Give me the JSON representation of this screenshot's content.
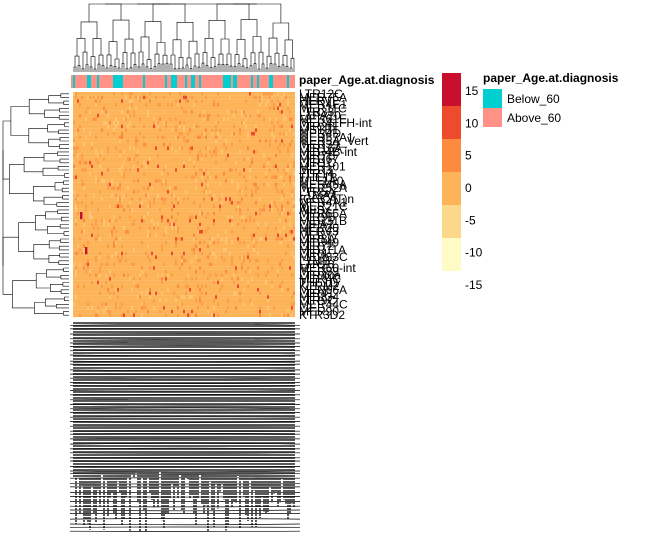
{
  "chart_data": {
    "type": "heatmap",
    "annotation": {
      "title": "paper_Age.at.diagnosis",
      "levels": [
        {
          "label": "Below_60",
          "color": "#00CED1"
        },
        {
          "label": "Above_60",
          "color": "#FF9186"
        }
      ]
    },
    "color_scale": {
      "bins": [
        {
          "label": "15",
          "color": "#C8102E"
        },
        {
          "label": "10",
          "color": "#EE4A2C"
        },
        {
          "label": "5",
          "color": "#FC8A3F"
        },
        {
          "label": "0",
          "color": "#FDB458"
        },
        {
          "label": "-5",
          "color": "#FED88A"
        },
        {
          "label": "-10",
          "color": "#FFFBC4"
        }
      ],
      "tick_labels": [
        "15",
        "10",
        "5",
        "0",
        "-5",
        "-10",
        "-15"
      ]
    },
    "row_labels": [
      "LTR12C",
      "MER75A",
      "HERVL",
      "MER4E1",
      "MER11C",
      "LTR33",
      "L1PA10",
      "MER61E",
      "MER41FH-int",
      "LTR2B",
      "MSTB1",
      "MER4D",
      "MER57A1",
      "MER5A_Vert",
      "MER39",
      "LTR16A",
      "MER4B-int",
      "LTR7B",
      "MER67",
      "LTR1C",
      "MER101",
      "MER3",
      "LTR14",
      "THE1B",
      "MLT1A0",
      "MER45A",
      "MER52A",
      "LTR5A",
      "L1MA4",
      "(CCCAT)n",
      "MER4A1",
      "MER21C",
      "AluSx",
      "MER65A",
      "LTR9B",
      "MER31B",
      "L1PA2",
      "MER20",
      "HERV3",
      "MER77",
      "LTR8A",
      "MER49",
      "LTR72",
      "MER11A",
      "LTR4",
      "MER83C",
      "L1MB7",
      "LTR26",
      "MER50-int",
      "MER89",
      "LTR40a",
      "MER4C",
      "THE1D",
      "KTRM2",
      "MER66A",
      "LTR41",
      "MER34",
      "LTR9C",
      "MER44C",
      "L2",
      "MER90",
      "KTR3D2"
    ]
  }
}
